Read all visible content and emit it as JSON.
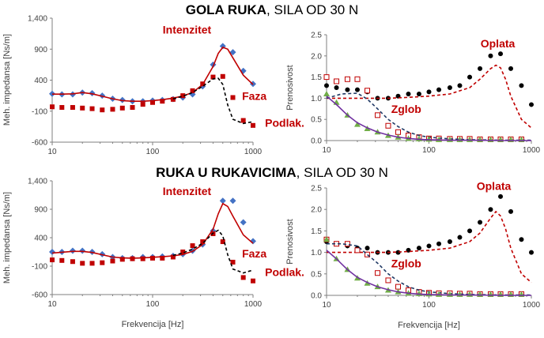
{
  "titles": [
    {
      "bold": "GOLA RUKA",
      "rest": ", SILA OD 30 N"
    },
    {
      "bold": "RUKA U RUKAVICIMA",
      "rest": ", SILA OD 30 N"
    }
  ],
  "colors": {
    "blue": "#4472C4",
    "red": "#C00000",
    "axis": "#7f7f7f",
    "black": "#000000",
    "green": "#70AD47",
    "purple": "#7030A0",
    "navy": "#1F3864"
  },
  "chart_data": [
    {
      "id": "top-left",
      "type": "scatter",
      "ylabel": "Meh. impedansa [Ns/m]",
      "xlabel": "",
      "xlim": [
        10,
        1000
      ],
      "ylim": [
        -600,
        1400
      ],
      "xscale": "log",
      "yticks": [
        -600,
        -100,
        400,
        900,
        1400
      ],
      "ytick_labels": [
        "-600",
        "-100",
        "400",
        "900",
        "1,400"
      ],
      "xticks": [
        10,
        100,
        1000
      ],
      "xtick_labels": [
        "10",
        "100",
        "1000"
      ],
      "annotations": [
        {
          "text": "Intenzitet",
          "x": 220,
          "y": 1150
        },
        {
          "text": "Faza",
          "x": 1030,
          "y": 80
        }
      ],
      "series": [
        {
          "name": "Intenzitet",
          "kind": "diamond",
          "color": "blue",
          "x": [
            10,
            12.5,
            16,
            20,
            25,
            31.5,
            40,
            50,
            63,
            80,
            100,
            125,
            160,
            200,
            250,
            315,
            400,
            500,
            630,
            800,
            1000
          ],
          "y": [
            180,
            170,
            170,
            200,
            190,
            150,
            100,
            80,
            60,
            60,
            70,
            80,
            95,
            120,
            170,
            300,
            650,
            950,
            850,
            550,
            340
          ]
        },
        {
          "name": "Intenzitet fit",
          "kind": "line",
          "color": "red",
          "x": [
            10,
            12.5,
            16,
            20,
            25,
            31.5,
            40,
            50,
            63,
            80,
            100,
            125,
            160,
            200,
            250,
            315,
            400,
            450,
            500,
            560,
            630,
            800,
            1000
          ],
          "y": [
            175,
            175,
            180,
            200,
            180,
            140,
            100,
            70,
            60,
            60,
            70,
            85,
            110,
            145,
            200,
            330,
            620,
            830,
            930,
            900,
            760,
            480,
            330
          ]
        },
        {
          "name": "Faza",
          "kind": "square",
          "color": "red",
          "x": [
            10,
            12.5,
            16,
            20,
            25,
            31.5,
            40,
            50,
            63,
            80,
            100,
            125,
            160,
            200,
            250,
            315,
            400,
            500,
            630,
            800,
            1000
          ],
          "y": [
            -30,
            -40,
            -40,
            -50,
            -60,
            -80,
            -70,
            -50,
            -40,
            10,
            40,
            60,
            90,
            150,
            230,
            340,
            450,
            460,
            120,
            -250,
            -330
          ]
        },
        {
          "name": "Faza fit",
          "kind": "dashed",
          "color": "black",
          "x": [
            160,
            200,
            250,
            315,
            400,
            450,
            500,
            560,
            630,
            800,
            1000
          ],
          "y": [
            100,
            140,
            200,
            300,
            420,
            430,
            330,
            0,
            -230,
            -300,
            -270
          ]
        }
      ]
    },
    {
      "id": "top-right",
      "type": "scatter",
      "ylabel": "Prenosivost",
      "xlabel": "",
      "xlim": [
        10,
        1000
      ],
      "ylim": [
        0,
        2.5
      ],
      "xscale": "log",
      "yticks": [
        0,
        0.5,
        1.0,
        1.5,
        2.0,
        2.5
      ],
      "ytick_labels": [
        "0.0",
        "0.5",
        "1.0",
        "1.5",
        "2.0",
        "2.5"
      ],
      "xticks": [
        10,
        100,
        1000
      ],
      "xtick_labels": [
        "10",
        "100",
        "1000"
      ],
      "annotations": [
        {
          "text": "Oplata",
          "x": 470,
          "y": 2.2
        },
        {
          "text": "Zglob",
          "x": 60,
          "y": 0.65
        },
        {
          "text": "Podlak.",
          "x": 3.9,
          "y": 0.33
        }
      ],
      "series": [
        {
          "name": "Oplata",
          "kind": "dot",
          "color": "black",
          "x": [
            10,
            12.5,
            16,
            20,
            25,
            31.5,
            40,
            50,
            63,
            80,
            100,
            125,
            160,
            200,
            250,
            315,
            400,
            500,
            630,
            800,
            1000
          ],
          "y": [
            1.3,
            1.25,
            1.2,
            1.2,
            1.15,
            1.0,
            1.0,
            1.05,
            1.1,
            1.1,
            1.15,
            1.2,
            1.25,
            1.3,
            1.5,
            1.7,
            2.0,
            2.05,
            1.7,
            1.3,
            0.85
          ]
        },
        {
          "name": "Oplata fit",
          "kind": "dashed",
          "color": "red",
          "x": [
            10,
            16,
            25,
            40,
            63,
            100,
            160,
            250,
            315,
            400,
            450,
            500,
            560,
            630,
            800,
            1000
          ],
          "y": [
            1.0,
            1.0,
            1.0,
            1.0,
            1.02,
            1.05,
            1.1,
            1.25,
            1.45,
            1.7,
            1.78,
            1.72,
            1.45,
            1.05,
            0.5,
            0.3
          ]
        },
        {
          "name": "Zglob",
          "kind": "opensquare",
          "color": "red",
          "x": [
            10,
            12.5,
            16,
            20,
            25,
            31.5,
            40,
            50,
            63,
            80,
            100,
            125,
            160,
            200,
            250,
            315,
            400,
            500,
            630,
            800
          ],
          "y": [
            1.5,
            1.4,
            1.45,
            1.45,
            1.18,
            0.6,
            0.35,
            0.2,
            0.12,
            0.08,
            0.05,
            0.05,
            0.04,
            0.04,
            0.04,
            0.03,
            0.03,
            0.03,
            0.03,
            0.03
          ]
        },
        {
          "name": "Zglob fit",
          "kind": "dashed",
          "color": "navy",
          "x": [
            10,
            14,
            20,
            25,
            31.5,
            40,
            50,
            63,
            80,
            100,
            160,
            250,
            500,
            1000
          ],
          "y": [
            1.0,
            1.1,
            1.12,
            0.98,
            0.75,
            0.5,
            0.33,
            0.2,
            0.12,
            0.08,
            0.04,
            0.02,
            0.01,
            0.01
          ]
        },
        {
          "name": "Podlak.",
          "kind": "triangle",
          "color": "green",
          "x": [
            10,
            12.5,
            16,
            20,
            25,
            31.5,
            40,
            50,
            63,
            80,
            100,
            125,
            160,
            200,
            250,
            315,
            400,
            500,
            630,
            800
          ],
          "y": [
            1.1,
            0.9,
            0.6,
            0.38,
            0.28,
            0.2,
            0.12,
            0.08,
            0.05,
            0.04,
            0.03,
            0.02,
            0.02,
            0.02,
            0.02,
            0.02,
            0.02,
            0.02,
            0.02,
            0.02
          ]
        },
        {
          "name": "Podlak. fit",
          "kind": "line",
          "color": "purple",
          "x": [
            10,
            12.5,
            16,
            20,
            25,
            31.5,
            40,
            50,
            63,
            80,
            100,
            160,
            250,
            500,
            1000
          ],
          "y": [
            1.05,
            0.85,
            0.6,
            0.42,
            0.3,
            0.2,
            0.13,
            0.08,
            0.05,
            0.03,
            0.02,
            0.01,
            0.01,
            0.0,
            0.0
          ]
        }
      ]
    },
    {
      "id": "bottom-left",
      "type": "scatter",
      "ylabel": "Meh. impedansa [Ns/m]",
      "xlabel": "Frekvencija [Hz]",
      "xlim": [
        10,
        1000
      ],
      "ylim": [
        -600,
        1400
      ],
      "xscale": "log",
      "yticks": [
        -600,
        -100,
        400,
        900,
        1400
      ],
      "ytick_labels": [
        "-600",
        "-100",
        "400",
        "900",
        "1,400"
      ],
      "xticks": [
        10,
        100,
        1000
      ],
      "xtick_labels": [
        "10",
        "100",
        "1000"
      ],
      "annotations": [
        {
          "text": "Intenzitet",
          "x": 220,
          "y": 1150
        },
        {
          "text": "Faza",
          "x": 1030,
          "y": 50
        }
      ],
      "series": [
        {
          "name": "Intenzitet",
          "kind": "diamond",
          "color": "blue",
          "x": [
            10,
            12.5,
            16,
            20,
            25,
            31.5,
            40,
            50,
            63,
            80,
            100,
            125,
            160,
            200,
            250,
            315,
            400,
            500,
            630,
            800,
            1000
          ],
          "y": [
            150,
            150,
            170,
            170,
            150,
            110,
            60,
            40,
            40,
            60,
            60,
            70,
            80,
            110,
            170,
            280,
            520,
            1050,
            1050,
            670,
            340
          ]
        },
        {
          "name": "Intenzitet fit",
          "kind": "line",
          "color": "red",
          "x": [
            10,
            12.5,
            16,
            20,
            25,
            31.5,
            40,
            50,
            63,
            80,
            100,
            125,
            160,
            200,
            250,
            315,
            400,
            450,
            500,
            560,
            630,
            800,
            1000
          ],
          "y": [
            130,
            145,
            160,
            160,
            140,
            100,
            60,
            45,
            40,
            45,
            55,
            65,
            80,
            105,
            160,
            280,
            550,
            820,
            1000,
            950,
            780,
            450,
            300
          ]
        },
        {
          "name": "Faza",
          "kind": "square",
          "color": "red",
          "x": [
            10,
            12.5,
            16,
            20,
            25,
            31.5,
            40,
            50,
            63,
            80,
            100,
            125,
            160,
            200,
            250,
            315,
            400,
            500,
            630,
            800,
            1000
          ],
          "y": [
            10,
            0,
            -20,
            -50,
            -50,
            -40,
            -10,
            20,
            30,
            30,
            40,
            40,
            60,
            150,
            260,
            330,
            470,
            330,
            -30,
            -300,
            -360
          ]
        },
        {
          "name": "Faza fit",
          "kind": "dashed",
          "color": "black",
          "x": [
            160,
            200,
            250,
            315,
            400,
            450,
            500,
            560,
            630,
            800,
            1000
          ],
          "y": [
            90,
            130,
            200,
            300,
            480,
            530,
            430,
            100,
            -150,
            -220,
            -170
          ]
        }
      ]
    },
    {
      "id": "bottom-right",
      "type": "scatter",
      "ylabel": "Prenosivost",
      "xlabel": "Frekvencija [Hz]",
      "xlim": [
        10,
        1000
      ],
      "ylim": [
        0,
        2.5
      ],
      "xscale": "log",
      "yticks": [
        0,
        0.5,
        1.0,
        1.5,
        2.0,
        2.5
      ],
      "ytick_labels": [
        "0.0",
        "0.5",
        "1.0",
        "1.5",
        "2.0",
        "2.5"
      ],
      "xticks": [
        10,
        100,
        1000
      ],
      "xtick_labels": [
        "10",
        "100",
        "1000"
      ],
      "annotations": [
        {
          "text": "Oplata",
          "x": 430,
          "y": 2.45
        },
        {
          "text": "Zglob",
          "x": 60,
          "y": 0.65
        },
        {
          "text": "Podlak.",
          "x": 3.9,
          "y": 0.45
        }
      ],
      "series": [
        {
          "name": "Oplata",
          "kind": "dot",
          "color": "black",
          "x": [
            10,
            12.5,
            16,
            20,
            25,
            31.5,
            40,
            50,
            63,
            80,
            100,
            125,
            160,
            200,
            250,
            315,
            400,
            500,
            630,
            800,
            1000
          ],
          "y": [
            1.25,
            1.2,
            1.15,
            1.1,
            1.1,
            1.0,
            1.0,
            1.0,
            1.05,
            1.1,
            1.15,
            1.2,
            1.25,
            1.35,
            1.5,
            1.7,
            2.0,
            2.3,
            1.95,
            1.3,
            1.0
          ]
        },
        {
          "name": "Oplata fit",
          "kind": "dashed",
          "color": "red",
          "x": [
            10,
            16,
            25,
            40,
            63,
            100,
            160,
            250,
            315,
            400,
            450,
            500,
            560,
            630,
            800,
            1000
          ],
          "y": [
            1.0,
            1.0,
            1.0,
            1.0,
            1.02,
            1.05,
            1.1,
            1.25,
            1.45,
            1.8,
            1.95,
            1.85,
            1.55,
            1.1,
            0.5,
            0.3
          ]
        },
        {
          "name": "Zglob",
          "kind": "opensquare",
          "color": "red",
          "x": [
            10,
            12.5,
            16,
            20,
            25,
            31.5,
            40,
            50,
            63,
            80,
            100,
            125,
            160,
            200,
            250,
            315,
            400,
            500,
            630,
            800
          ],
          "y": [
            1.3,
            1.2,
            1.2,
            1.05,
            0.95,
            0.52,
            0.35,
            0.2,
            0.12,
            0.08,
            0.06,
            0.05,
            0.05,
            0.04,
            0.04,
            0.03,
            0.03,
            0.03,
            0.03,
            0.03
          ]
        },
        {
          "name": "Zglob fit",
          "kind": "dashed",
          "color": "navy",
          "x": [
            10,
            14,
            20,
            25,
            31.5,
            40,
            50,
            63,
            80,
            100,
            160,
            250,
            500,
            1000
          ],
          "y": [
            1.2,
            1.2,
            1.15,
            0.95,
            0.75,
            0.5,
            0.33,
            0.2,
            0.12,
            0.08,
            0.04,
            0.02,
            0.01,
            0.01
          ]
        },
        {
          "name": "Podlak.",
          "kind": "triangle",
          "color": "green",
          "x": [
            10,
            12.5,
            16,
            20,
            25,
            31.5,
            40,
            50,
            63,
            80,
            100,
            125,
            160,
            200,
            250,
            315,
            400,
            500,
            630,
            800
          ],
          "y": [
            1.3,
            0.85,
            0.6,
            0.4,
            0.28,
            0.2,
            0.12,
            0.08,
            0.05,
            0.04,
            0.03,
            0.02,
            0.02,
            0.02,
            0.02,
            0.02,
            0.02,
            0.02,
            0.02,
            0.02
          ]
        },
        {
          "name": "Podlak. fit",
          "kind": "line",
          "color": "purple",
          "x": [
            10,
            12.5,
            16,
            20,
            25,
            31.5,
            40,
            50,
            63,
            80,
            100,
            160,
            250,
            500,
            1000
          ],
          "y": [
            1.05,
            0.85,
            0.6,
            0.42,
            0.3,
            0.2,
            0.13,
            0.08,
            0.05,
            0.03,
            0.02,
            0.01,
            0.01,
            0.0,
            0.0
          ]
        }
      ]
    }
  ]
}
